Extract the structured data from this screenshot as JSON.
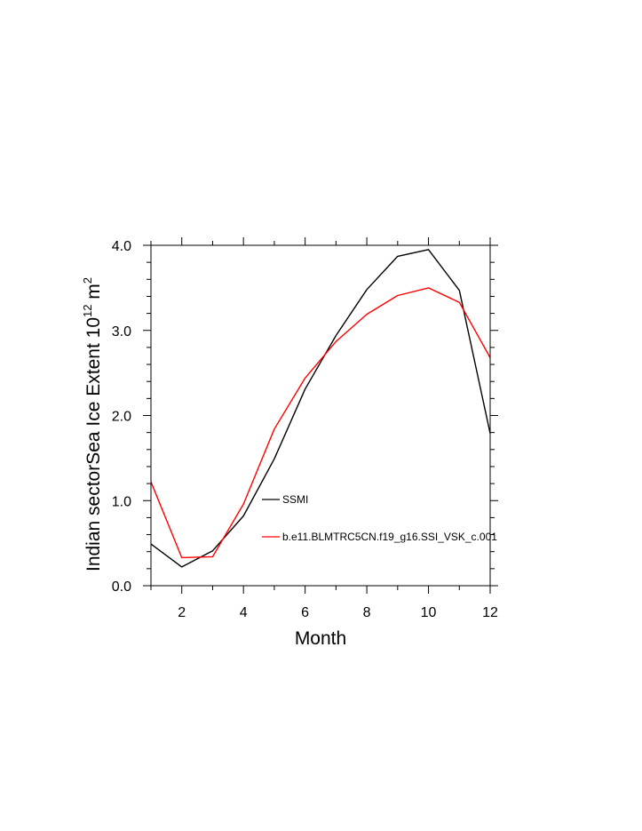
{
  "chart_data": {
    "type": "line",
    "title": "",
    "xlabel": "Month",
    "ylabel_main": "Indian sectorSea Ice Extent 10",
    "ylabel_sup": "12",
    "ylabel_unit": " m",
    "ylabel_unit_sup": "2",
    "xlim": [
      1,
      12
    ],
    "ylim": [
      0.0,
      4.0
    ],
    "xticks": [
      2,
      4,
      6,
      8,
      10,
      12
    ],
    "yticks": [
      "0.0",
      "1.0",
      "2.0",
      "3.0",
      "4.0"
    ],
    "grid": false,
    "legend_position": "inside, lower-right",
    "series": [
      {
        "name": "SSMI",
        "color": "#000000",
        "x": [
          1,
          2,
          3,
          4,
          5,
          6,
          7,
          8,
          9,
          10,
          11,
          12
        ],
        "y": [
          0.49,
          0.22,
          0.41,
          0.82,
          1.49,
          2.31,
          2.94,
          3.48,
          3.87,
          3.95,
          3.47,
          1.79
        ]
      },
      {
        "name": "b.e11.BLMTRC5CN.f19_g16.SSI_VSK_c.001",
        "color": "#ff0000",
        "x": [
          1,
          2,
          3,
          4,
          5,
          6,
          7,
          8,
          9,
          10,
          11,
          12
        ],
        "y": [
          1.22,
          0.33,
          0.34,
          0.96,
          1.84,
          2.44,
          2.87,
          3.19,
          3.41,
          3.5,
          3.33,
          2.68
        ]
      }
    ]
  }
}
